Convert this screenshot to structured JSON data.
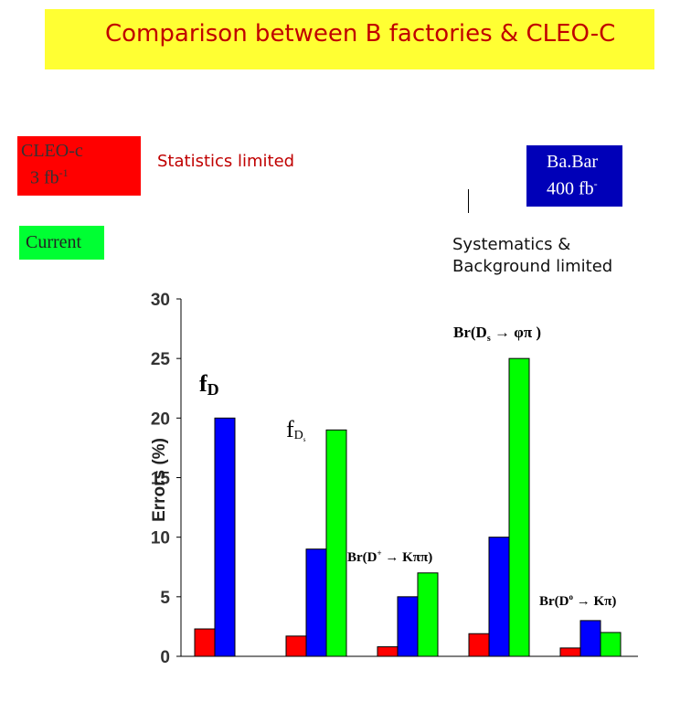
{
  "header": {
    "title": "Comparison between B factories & CLEO-C"
  },
  "legend": {
    "cleo_line1": "CLEO-c",
    "cleo_line2": "3 fb",
    "cleo_sup": "-1",
    "current": "Current",
    "babar_line1": "Ba.Bar",
    "babar_line2": "400 fb",
    "babar_sup": "-"
  },
  "notes": {
    "statistics": "Statistics limited",
    "systematics_line1": "Systematics &",
    "systematics_line2": "Background limited"
  },
  "colors": {
    "cleo": "#ff0000",
    "babar": "#0000ff",
    "current": "#00ff00",
    "banner": "#ffff33",
    "title": "#c00000"
  },
  "chart_data": {
    "type": "bar",
    "ylabel": "Errors (%)",
    "ylim": [
      0,
      30
    ],
    "yticks": [
      "0",
      "5",
      "10",
      "15",
      "20",
      "25",
      "30"
    ],
    "categories": [
      "f_D",
      "f_Ds",
      "Br(D+ → Kππ)",
      "Br(Ds → φπ)",
      "Br(D0 → Kπ)"
    ],
    "series": [
      {
        "name": "CLEO-c",
        "color": "#ff0000",
        "values": [
          2.3,
          1.7,
          0.8,
          1.9,
          0.7
        ]
      },
      {
        "name": "Ba.Bar",
        "color": "#0000ff",
        "values": [
          20,
          9,
          5,
          10,
          3
        ]
      },
      {
        "name": "Current",
        "color": "#00ff00",
        "values": [
          null,
          19,
          7,
          25,
          2
        ]
      }
    ],
    "annotations": {
      "fd_main": "f",
      "fd_sub": "D",
      "fds_main": "f",
      "fds_sub": "D",
      "fds_subsub": "s",
      "brdp": "Br(D",
      "brdp_sup": "+",
      "brdp_rest": " → Kππ)",
      "brds": "Br(D",
      "brds_sub": "s",
      "brds_rest": " → φπ )",
      "brd0": "Br(D",
      "brd0_sup": "o",
      "brd0_rest": " → Kπ)"
    }
  }
}
